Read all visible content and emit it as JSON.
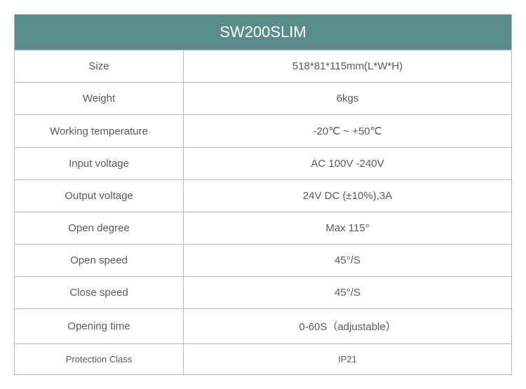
{
  "table": {
    "title": "SW200SLIM",
    "header_bg": "#5b8c8c",
    "header_text_color": "#ffffff",
    "border_color": "#b9b9b9",
    "cell_text_color": "#5a5a5a",
    "cell_bg": "#ffffff",
    "label_col_width_pct": 34,
    "value_col_width_pct": 66,
    "rows": [
      {
        "label": "Size",
        "value": "518*81*115mm(L*W*H)"
      },
      {
        "label": "Weight",
        "value": "6kgs"
      },
      {
        "label": "Working temperature",
        "value": "-20℃ ~ +50℃"
      },
      {
        "label": "Input voltage",
        "value": "AC 100V -240V"
      },
      {
        "label": "Output voltage",
        "value": "24V DC (±10%),3A"
      },
      {
        "label": "Open degree",
        "value": "Max 115°"
      },
      {
        "label": "Open speed",
        "value": "45°/S"
      },
      {
        "label": "Close speed",
        "value": "45°/S"
      },
      {
        "label": "Opening time",
        "value": "0-60S（adjustable）"
      },
      {
        "label": "Protection Class",
        "value": "IP21",
        "smaller": true
      }
    ]
  }
}
